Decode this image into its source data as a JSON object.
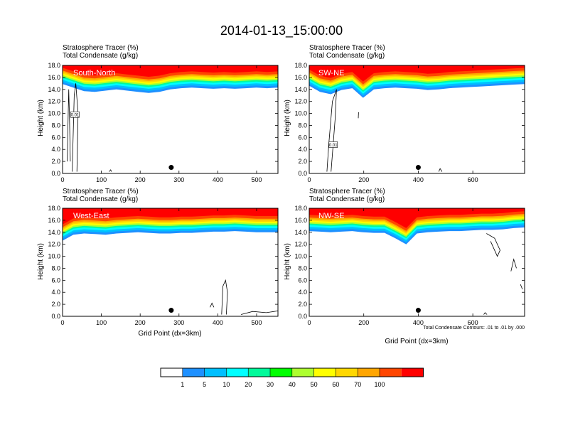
{
  "figure_title": "2014-01-13_15:00:00",
  "colors": {
    "levels": [
      "#ffffff",
      "#1e90ff",
      "#00bfff",
      "#00ffff",
      "#00fa9a",
      "#00ff00",
      "#adff2f",
      "#ffff00",
      "#ffd700",
      "#ffa500",
      "#ff4500",
      "#ff0000"
    ]
  },
  "chart_data": [
    {
      "type": "heatmap",
      "panel_label": "South-North",
      "title_lines": [
        "Stratosphere Tracer   (%)",
        "Total Condensate   (g/kg)"
      ],
      "ylabel": "Height (km)",
      "xlabel": "",
      "xlim": [
        0,
        555
      ],
      "xticks": [
        "0",
        "100",
        "200",
        "300",
        "400",
        "500"
      ],
      "ylim": [
        0,
        18
      ],
      "yticks": [
        "0.0",
        "2.0",
        "4.0",
        "6.0",
        "8.0",
        "10.0",
        "12.0",
        "14.0",
        "16.0",
        "18.0"
      ],
      "marker_x": 280,
      "tracer_base_km": [
        14.9,
        14.3,
        13.7,
        13.6,
        13.8,
        14.0,
        13.8,
        13.6,
        13.4,
        13.6,
        14.0,
        14.2,
        14.3,
        14.2,
        14.1,
        14.2,
        14.1,
        14.2,
        14.3,
        14.2,
        14.3
      ],
      "condensate_contours": [
        [
          [
            12,
            2
          ],
          [
            14,
            8
          ],
          [
            16,
            14
          ],
          [
            18,
            9
          ],
          [
            20,
            2
          ]
        ],
        [
          [
            25,
            0.3
          ],
          [
            30,
            13
          ],
          [
            34,
            15
          ],
          [
            40,
            10
          ],
          [
            37,
            0.3
          ]
        ],
        [
          [
            120,
            0.3
          ],
          [
            124,
            0.6
          ],
          [
            126,
            0.3
          ]
        ]
      ],
      "contour_labels": [
        {
          "x": 32,
          "y": 9.8,
          "text": "0.01"
        }
      ]
    },
    {
      "type": "heatmap",
      "panel_label": "SW-NE",
      "title_lines": [
        "Stratosphere Tracer   (%)",
        "Total Condensate   (g/kg)"
      ],
      "ylabel": "Height (km)",
      "xlabel": "",
      "xlim": [
        0,
        790
      ],
      "xticks": [
        "0",
        "200",
        "400",
        "600"
      ],
      "ylim": [
        0,
        18
      ],
      "yticks": [
        "0.0",
        "2.0",
        "4.0",
        "6.0",
        "8.0",
        "10.0",
        "12.0",
        "14.0",
        "16.0",
        "18.0"
      ],
      "marker_x": 400,
      "tracer_base_km": [
        14.6,
        13.6,
        13.2,
        13.9,
        14.2,
        12.6,
        14.0,
        14.2,
        14.3,
        14.2,
        14.1,
        13.9,
        14.0,
        14.2,
        14.3,
        14.4,
        14.5,
        14.6,
        14.7,
        14.8,
        14.9
      ],
      "condensate_contours": [
        [
          [
            65,
            0.3
          ],
          [
            72,
            5
          ],
          [
            85,
            12
          ],
          [
            100,
            14
          ],
          [
            95,
            9
          ],
          [
            80,
            0.3
          ]
        ],
        [
          [
            180,
            9.2
          ],
          [
            181,
            10.2
          ]
        ],
        [
          [
            475,
            0.3
          ],
          [
            480,
            0.8
          ],
          [
            487,
            0.3
          ]
        ]
      ],
      "contour_labels": [
        {
          "x": 88,
          "y": 4.8,
          "text": "0.01"
        }
      ]
    },
    {
      "type": "heatmap",
      "panel_label": "West-East",
      "title_lines": [
        "Stratosphere Tracer   (%)",
        "Total Condensate   (g/kg)"
      ],
      "ylabel": "Height (km)",
      "xlabel": "Grid Point (dx=3km)",
      "xlim": [
        0,
        555
      ],
      "xticks": [
        "0",
        "100",
        "200",
        "300",
        "400",
        "500"
      ],
      "ylim": [
        0,
        18
      ],
      "yticks": [
        "0.0",
        "2.0",
        "4.0",
        "6.0",
        "8.0",
        "10.0",
        "12.0",
        "14.0",
        "16.0",
        "18.0"
      ],
      "marker_x": 280,
      "tracer_base_km": [
        12.6,
        13.6,
        13.8,
        13.7,
        13.6,
        13.8,
        13.9,
        14.0,
        13.9,
        13.8,
        13.8,
        13.9,
        13.9,
        14.0,
        14.1,
        14.1,
        14.2,
        14.1,
        14.0,
        14.0,
        14.0
      ],
      "condensate_contours": [
        [
          [
            410,
            0.3
          ],
          [
            413,
            5
          ],
          [
            420,
            6
          ],
          [
            425,
            4
          ],
          [
            422,
            0.3
          ]
        ],
        [
          [
            380,
            1.5
          ],
          [
            385,
            2.2
          ],
          [
            390,
            1.5
          ]
        ],
        [
          [
            460,
            0.3
          ],
          [
            490,
            0.8
          ],
          [
            525,
            0.6
          ],
          [
            555,
            0.9
          ]
        ]
      ],
      "contour_labels": []
    },
    {
      "type": "heatmap",
      "panel_label": "NW-SE",
      "title_lines": [
        "Stratosphere Tracer   (%)",
        "Total Condensate   (g/kg)"
      ],
      "ylabel": "Height (km)",
      "xlabel": "Grid Point (dx=3km)",
      "xlim": [
        0,
        790
      ],
      "xticks": [
        "0",
        "200",
        "400",
        "600"
      ],
      "ylim": [
        0,
        18
      ],
      "yticks": [
        "0.0",
        "2.0",
        "4.0",
        "6.0",
        "8.0",
        "10.0",
        "12.0",
        "14.0",
        "16.0",
        "18.0"
      ],
      "marker_x": 400,
      "tracer_base_km": [
        14.2,
        14.1,
        14.0,
        14.1,
        14.2,
        14.0,
        13.9,
        13.9,
        13.0,
        12.0,
        13.8,
        14.0,
        14.1,
        14.2,
        14.2,
        14.3,
        14.4,
        14.4,
        14.5,
        14.7,
        14.8
      ],
      "condensate_contours": [
        [
          [
            650,
            13.8
          ],
          [
            680,
            13
          ],
          [
            700,
            11
          ],
          [
            690,
            10
          ],
          [
            665,
            12.5
          ]
        ],
        [
          [
            740,
            7.5
          ],
          [
            750,
            9.5
          ],
          [
            760,
            8
          ]
        ],
        [
          [
            775,
            5.3
          ],
          [
            782,
            4.5
          ]
        ],
        [
          [
            640,
            0.3
          ],
          [
            645,
            0.6
          ],
          [
            652,
            0.3
          ]
        ]
      ],
      "contour_labels": []
    }
  ],
  "contour_note": "Total Condensate Contours: .01 to .01 by .000",
  "colorbar": {
    "labels": [
      "1",
      "5",
      "10",
      "20",
      "30",
      "40",
      "50",
      "60",
      "70",
      "100"
    ]
  }
}
